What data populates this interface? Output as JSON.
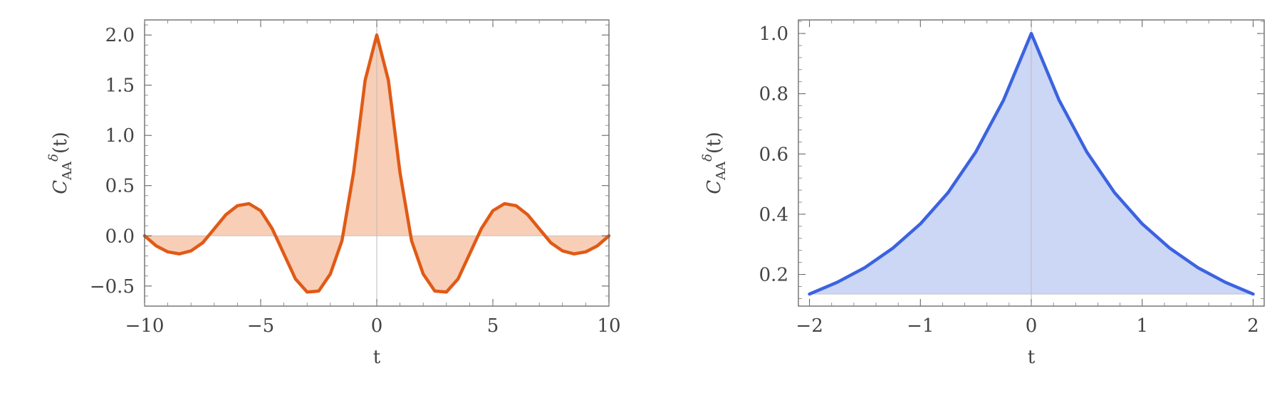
{
  "chart_data": [
    {
      "type": "area",
      "title": "",
      "xlabel": "t",
      "ylabel": {
        "main": "C",
        "sub": "AA",
        "sup": "δ",
        "arg": "(t)"
      },
      "xlim": [
        -10,
        10
      ],
      "ylim": [
        -0.7,
        2.15
      ],
      "xticks": [
        -10,
        -5,
        0,
        5,
        10
      ],
      "xtick_labels": [
        "−10",
        "−5",
        "0",
        "5",
        "10"
      ],
      "yticks": [
        -0.5,
        0,
        0.5,
        1,
        1.5,
        2
      ],
      "ytick_labels": [
        "−0.5",
        "0.0",
        "0.5",
        "1.0",
        "1.5",
        "2.0"
      ],
      "fill_to": 0,
      "grid": false,
      "colors": {
        "line": "#e05a16",
        "fill": "#f7c9ae"
      },
      "series": [
        {
          "x": [
            -10,
            -9.5,
            -9,
            -8.5,
            -8,
            -7.5,
            -7,
            -6.5,
            -6,
            -5.5,
            -5,
            -4.5,
            -4,
            -3.5,
            -3,
            -2.5,
            -2,
            -1.5,
            -1,
            -0.5,
            0,
            0.5,
            1,
            1.5,
            2,
            2.5,
            3,
            3.5,
            4,
            4.5,
            5,
            5.5,
            6,
            6.5,
            7,
            7.5,
            8,
            8.5,
            9,
            9.5,
            10
          ],
          "y": [
            0,
            -0.1,
            -0.16,
            -0.18,
            -0.15,
            -0.07,
            0.07,
            0.21,
            0.3,
            0.32,
            0.25,
            0.07,
            -0.18,
            -0.43,
            -0.56,
            -0.55,
            -0.38,
            -0.05,
            0.63,
            1.55,
            2.0,
            1.55,
            0.63,
            -0.05,
            -0.38,
            -0.55,
            -0.56,
            -0.43,
            -0.18,
            0.07,
            0.25,
            0.32,
            0.3,
            0.21,
            0.07,
            -0.07,
            -0.15,
            -0.18,
            -0.16,
            -0.1,
            0
          ]
        }
      ]
    },
    {
      "type": "area",
      "title": "",
      "xlabel": "t",
      "ylabel": {
        "main": "C",
        "sub": "AA",
        "sup": "δ",
        "arg": "(t)"
      },
      "xlim": [
        -2.1,
        2.1
      ],
      "ylim": [
        0.095,
        1.045
      ],
      "xticks": [
        -2,
        -1,
        0,
        1,
        2
      ],
      "xtick_labels": [
        "−2",
        "−1",
        "0",
        "1",
        "2"
      ],
      "yticks": [
        0.2,
        0.4,
        0.6,
        0.8,
        1.0
      ],
      "ytick_labels": [
        "0.2",
        "0.4",
        "0.6",
        "0.8",
        "1.0"
      ],
      "fill_to": 0.135,
      "grid": false,
      "colors": {
        "line": "#3b63e0",
        "fill": "#c6d2f4"
      },
      "series": [
        {
          "x": [
            -2,
            -1.75,
            -1.5,
            -1.25,
            -1,
            -0.75,
            -0.5,
            -0.25,
            0,
            0.25,
            0.5,
            0.75,
            1,
            1.25,
            1.5,
            1.75,
            2
          ],
          "y": [
            0.135,
            0.174,
            0.223,
            0.287,
            0.368,
            0.472,
            0.607,
            0.779,
            1.0,
            0.779,
            0.607,
            0.472,
            0.368,
            0.287,
            0.223,
            0.174,
            0.135
          ]
        }
      ]
    }
  ]
}
